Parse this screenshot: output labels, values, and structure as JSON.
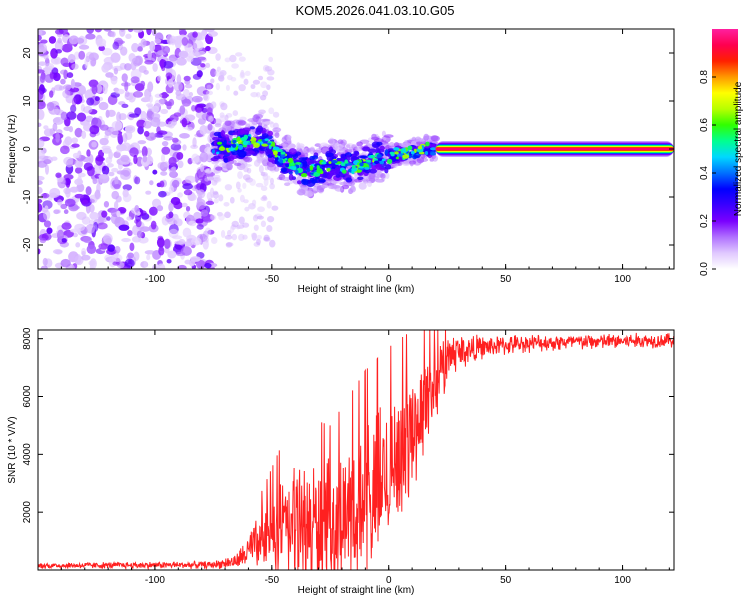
{
  "title": "KOM5.2026.041.03.10.G05",
  "chart_data": [
    {
      "type": "heatmap",
      "name": "spectrogram",
      "xlabel": "Height of straight line (km)",
      "ylabel": "Frequency (Hz)",
      "xlim": [
        -150,
        122
      ],
      "ylim": [
        -25,
        25
      ],
      "xticks": [
        -100,
        -50,
        0,
        50,
        100
      ],
      "yticks": [
        -20,
        -10,
        0,
        10,
        20
      ],
      "colorbar": {
        "label": "Normalized spectral amplitude",
        "range": [
          0,
          1
        ],
        "ticks": [
          "0.0",
          "0.2",
          "0.4",
          "0.6",
          "0.8"
        ],
        "colors": [
          "#ffffff",
          "#e0c8ff",
          "#b070ff",
          "#7a00ff",
          "#3a00ff",
          "#0000ff",
          "#0070ff",
          "#00d8ff",
          "#00ff90",
          "#30ff00",
          "#b8ff00",
          "#ffff00",
          "#ff9900",
          "#ff2000",
          "#ff0050",
          "#ff20a0"
        ]
      },
      "regions": [
        {
          "label": "noise",
          "x": [
            -150,
            -75
          ],
          "freq": [
            -25,
            25
          ],
          "amplitude": 0.15
        },
        {
          "label": "transition",
          "x": [
            -75,
            20
          ],
          "freq_track": [
            [
              -75,
              0
            ],
            [
              -55,
              2
            ],
            [
              -45,
              -2
            ],
            [
              -35,
              -5
            ],
            [
              -25,
              -3
            ],
            [
              -15,
              -4
            ],
            [
              -5,
              -2
            ],
            [
              5,
              -1
            ],
            [
              15,
              0
            ],
            [
              20,
              0
            ]
          ],
          "amplitude": 0.4
        },
        {
          "label": "carrier",
          "x": [
            20,
            122
          ],
          "freq": 0,
          "amplitude": 0.95
        }
      ]
    },
    {
      "type": "line",
      "name": "snr",
      "xlabel": "Height of straight line (km)",
      "ylabel": "SNR (10 * V/V)",
      "xlim": [
        -150,
        122
      ],
      "ylim": [
        0,
        8300
      ],
      "xticks": [
        -100,
        -50,
        0,
        50,
        100
      ],
      "yticks": [
        2000,
        4000,
        6000,
        8000
      ],
      "color": "#ff2020",
      "envelope": [
        {
          "x": -150,
          "mean": 150,
          "spread": 120
        },
        {
          "x": -75,
          "mean": 180,
          "spread": 150
        },
        {
          "x": -65,
          "mean": 300,
          "spread": 300
        },
        {
          "x": -52,
          "mean": 1200,
          "spread": 1400
        },
        {
          "x": -40,
          "mean": 1500,
          "spread": 2800
        },
        {
          "x": -25,
          "mean": 1500,
          "spread": 2500
        },
        {
          "x": -10,
          "mean": 2000,
          "spread": 3500
        },
        {
          "x": 0,
          "mean": 3500,
          "spread": 3000
        },
        {
          "x": 10,
          "mean": 4800,
          "spread": 2500
        },
        {
          "x": 20,
          "mean": 6500,
          "spread": 1500
        },
        {
          "x": 27,
          "mean": 7500,
          "spread": 900
        },
        {
          "x": 40,
          "mean": 7700,
          "spread": 450
        },
        {
          "x": 60,
          "mean": 7850,
          "spread": 350
        },
        {
          "x": 122,
          "mean": 7950,
          "spread": 300
        }
      ]
    }
  ]
}
